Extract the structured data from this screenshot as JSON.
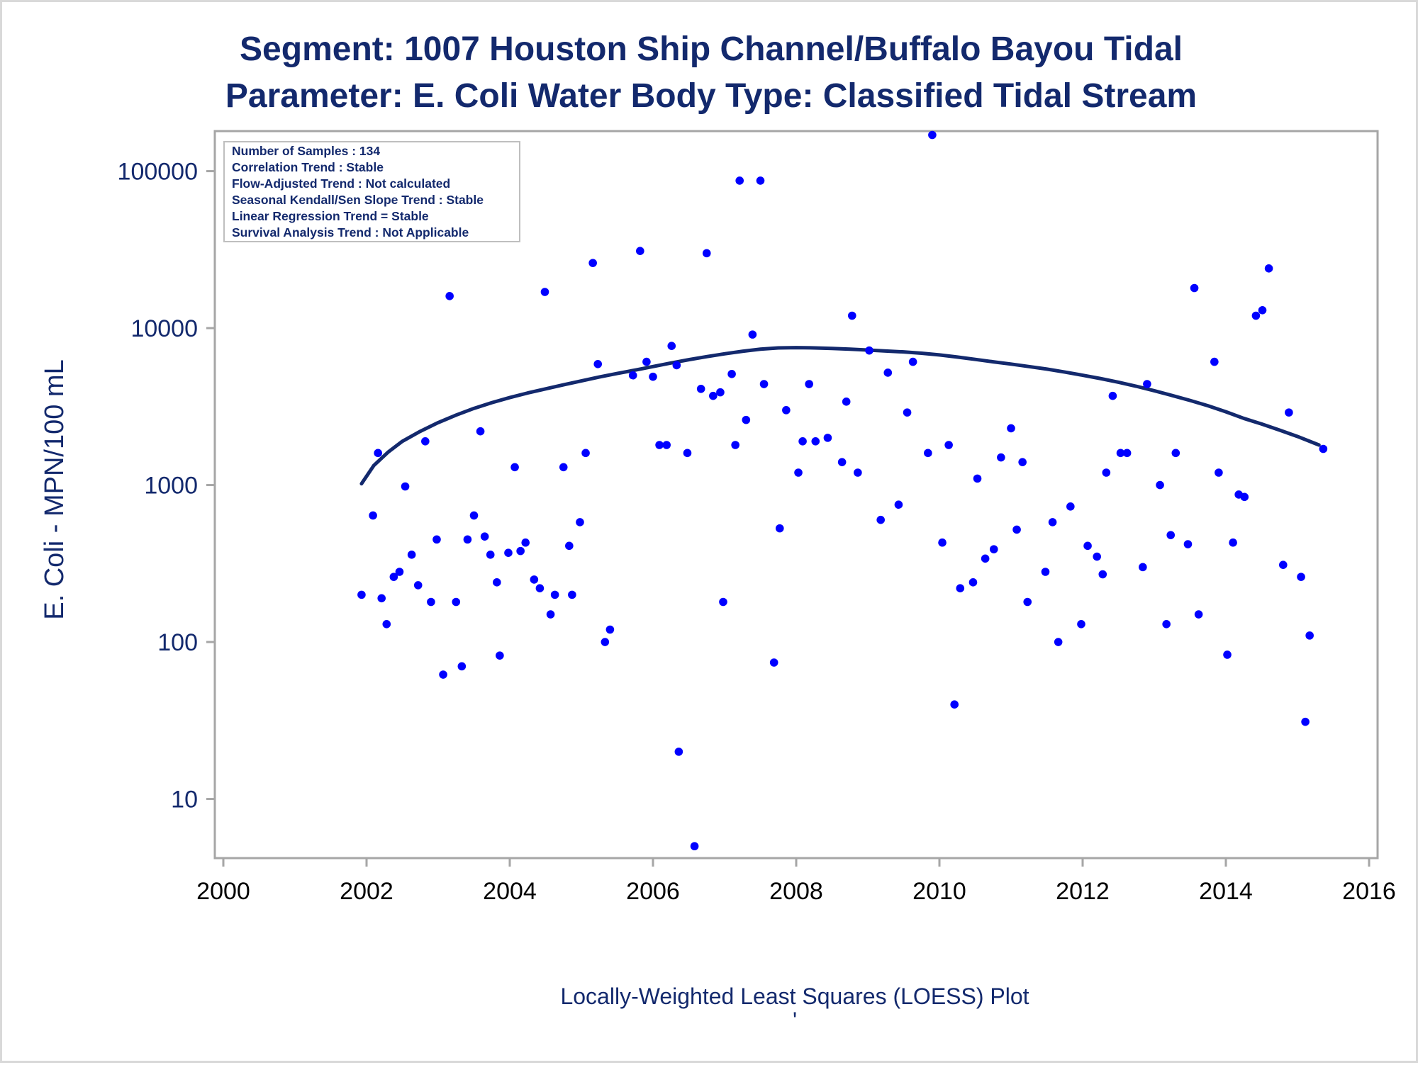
{
  "chart_data": {
    "type": "scatter",
    "title": "Segment: 1007  Houston Ship Channel/Buffalo Bayou Tidal",
    "subtitle": "Parameter: E. Coli   Water Body Type: Classified Tidal Stream",
    "xlabel": "",
    "ylabel": "E. Coli - MPN/100 mL",
    "footer": "Locally-Weighted Least Squares (LOESS) Plot",
    "footer_mark": "'",
    "xlim": [
      2000,
      2016
    ],
    "ylim": [
      4.2,
      180000
    ],
    "yscale": "log",
    "x_ticks": [
      2000,
      2002,
      2004,
      2006,
      2008,
      2010,
      2012,
      2014,
      2016
    ],
    "x_tick_labels": [
      "2000",
      "2002",
      "2004",
      "2006",
      "2008",
      "2010",
      "2012",
      "2014",
      "2016"
    ],
    "y_ticks": [
      10,
      100,
      1000,
      10000,
      100000
    ],
    "y_tick_labels": [
      "10",
      "100",
      "1000",
      "10000",
      "100000"
    ],
    "grid": false,
    "colors": {
      "points": "#0000ff",
      "loess": "#13296d",
      "text": "#13296d",
      "axis": "#a6a6a6"
    },
    "stats_box": {
      "position": "top-left",
      "lines": [
        "Number of Samples : 134",
        "Correlation Trend : Stable",
        "Flow-Adjusted Trend : Not calculated",
        "Seasonal Kendall/Sen Slope Trend : Stable",
        "Linear Regression Trend = Stable",
        "Survival Analysis Trend : Not Applicable"
      ]
    },
    "series": [
      {
        "type": "scatter",
        "points": [
          [
            2001.93,
            200
          ],
          [
            2002.09,
            640
          ],
          [
            2002.16,
            1600
          ],
          [
            2002.21,
            190
          ],
          [
            2002.28,
            130
          ],
          [
            2002.38,
            260
          ],
          [
            2002.46,
            280
          ],
          [
            2002.54,
            980
          ],
          [
            2002.63,
            360
          ],
          [
            2002.72,
            230
          ],
          [
            2002.82,
            1900
          ],
          [
            2002.9,
            180
          ],
          [
            2002.98,
            450
          ],
          [
            2003.07,
            62
          ],
          [
            2003.16,
            16000
          ],
          [
            2003.25,
            180
          ],
          [
            2003.33,
            70
          ],
          [
            2003.41,
            450
          ],
          [
            2003.5,
            640
          ],
          [
            2003.59,
            2200
          ],
          [
            2003.65,
            470
          ],
          [
            2003.73,
            360
          ],
          [
            2003.82,
            240
          ],
          [
            2003.86,
            82
          ],
          [
            2003.98,
            370
          ],
          [
            2004.07,
            1300
          ],
          [
            2004.15,
            380
          ],
          [
            2004.22,
            430
          ],
          [
            2004.34,
            250
          ],
          [
            2004.42,
            220
          ],
          [
            2004.49,
            17000
          ],
          [
            2004.57,
            150
          ],
          [
            2004.63,
            200
          ],
          [
            2004.75,
            1300
          ],
          [
            2004.83,
            410
          ],
          [
            2004.87,
            200
          ],
          [
            2004.98,
            580
          ],
          [
            2005.06,
            1600
          ],
          [
            2005.16,
            26000
          ],
          [
            2005.23,
            5900
          ],
          [
            2005.33,
            100
          ],
          [
            2005.4,
            120
          ],
          [
            2005.72,
            5000
          ],
          [
            2005.82,
            31000
          ],
          [
            2005.91,
            6100
          ],
          [
            2006.0,
            4900
          ],
          [
            2006.09,
            1800
          ],
          [
            2006.19,
            1800
          ],
          [
            2006.26,
            7700
          ],
          [
            2006.33,
            5800
          ],
          [
            2006.36,
            20
          ],
          [
            2006.48,
            1600
          ],
          [
            2006.58,
            5
          ],
          [
            2006.67,
            4100
          ],
          [
            2006.75,
            30000
          ],
          [
            2006.84,
            3700
          ],
          [
            2006.94,
            3900
          ],
          [
            2006.98,
            180
          ],
          [
            2007.1,
            5100
          ],
          [
            2007.15,
            1800
          ],
          [
            2007.21,
            87000
          ],
          [
            2007.3,
            2600
          ],
          [
            2007.39,
            9100
          ],
          [
            2007.5,
            87000
          ],
          [
            2007.55,
            4400
          ],
          [
            2007.69,
            74
          ],
          [
            2007.77,
            530
          ],
          [
            2007.86,
            3000
          ],
          [
            2008.03,
            1200
          ],
          [
            2008.09,
            1900
          ],
          [
            2008.18,
            4400
          ],
          [
            2008.27,
            1900
          ],
          [
            2008.44,
            2000
          ],
          [
            2008.64,
            1400
          ],
          [
            2008.7,
            3400
          ],
          [
            2008.78,
            12000
          ],
          [
            2008.86,
            1200
          ],
          [
            2009.02,
            7200
          ],
          [
            2009.18,
            600
          ],
          [
            2009.28,
            5200
          ],
          [
            2009.43,
            750
          ],
          [
            2009.55,
            2900
          ],
          [
            2009.63,
            6100
          ],
          [
            2009.84,
            1600
          ],
          [
            2009.9,
            170000
          ],
          [
            2010.04,
            430
          ],
          [
            2010.13,
            1800
          ],
          [
            2010.21,
            40
          ],
          [
            2010.29,
            220
          ],
          [
            2010.47,
            240
          ],
          [
            2010.53,
            1100
          ],
          [
            2010.64,
            340
          ],
          [
            2010.76,
            390
          ],
          [
            2010.86,
            1500
          ],
          [
            2011.0,
            2300
          ],
          [
            2011.08,
            520
          ],
          [
            2011.16,
            1400
          ],
          [
            2011.23,
            180
          ],
          [
            2011.48,
            280
          ],
          [
            2011.58,
            580
          ],
          [
            2011.66,
            100
          ],
          [
            2011.83,
            730
          ],
          [
            2011.98,
            130
          ],
          [
            2012.07,
            410
          ],
          [
            2012.2,
            350
          ],
          [
            2012.28,
            270
          ],
          [
            2012.33,
            1200
          ],
          [
            2012.42,
            3700
          ],
          [
            2012.53,
            1600
          ],
          [
            2012.62,
            1600
          ],
          [
            2012.84,
            300
          ],
          [
            2012.9,
            4400
          ],
          [
            2013.08,
            1000
          ],
          [
            2013.17,
            130
          ],
          [
            2013.23,
            480
          ],
          [
            2013.3,
            1600
          ],
          [
            2013.47,
            420
          ],
          [
            2013.56,
            18000
          ],
          [
            2013.62,
            150
          ],
          [
            2013.84,
            6100
          ],
          [
            2013.9,
            1200
          ],
          [
            2014.02,
            83
          ],
          [
            2014.1,
            430
          ],
          [
            2014.18,
            870
          ],
          [
            2014.26,
            840
          ],
          [
            2014.42,
            12000
          ],
          [
            2014.51,
            13000
          ],
          [
            2014.6,
            24000
          ],
          [
            2014.8,
            310
          ],
          [
            2014.88,
            2900
          ],
          [
            2015.05,
            260
          ],
          [
            2015.11,
            31
          ],
          [
            2015.17,
            110
          ],
          [
            2015.36,
            1700
          ]
        ]
      },
      {
        "type": "line",
        "points": [
          [
            2001.93,
            1020
          ],
          [
            2002.1,
            1330
          ],
          [
            2002.3,
            1620
          ],
          [
            2002.5,
            1900
          ],
          [
            2002.75,
            2200
          ],
          [
            2003.0,
            2500
          ],
          [
            2003.25,
            2790
          ],
          [
            2003.5,
            3080
          ],
          [
            2003.75,
            3350
          ],
          [
            2004.0,
            3610
          ],
          [
            2004.25,
            3860
          ],
          [
            2004.5,
            4100
          ],
          [
            2004.75,
            4350
          ],
          [
            2005.0,
            4610
          ],
          [
            2005.25,
            4880
          ],
          [
            2005.5,
            5140
          ],
          [
            2005.75,
            5400
          ],
          [
            2006.0,
            5690
          ],
          [
            2006.25,
            5990
          ],
          [
            2006.5,
            6290
          ],
          [
            2006.75,
            6580
          ],
          [
            2007.0,
            6860
          ],
          [
            2007.25,
            7120
          ],
          [
            2007.5,
            7340
          ],
          [
            2007.75,
            7480
          ],
          [
            2008.0,
            7510
          ],
          [
            2008.25,
            7480
          ],
          [
            2008.5,
            7420
          ],
          [
            2008.75,
            7340
          ],
          [
            2009.0,
            7250
          ],
          [
            2009.25,
            7150
          ],
          [
            2009.5,
            7050
          ],
          [
            2009.75,
            6920
          ],
          [
            2010.0,
            6750
          ],
          [
            2010.25,
            6540
          ],
          [
            2010.5,
            6320
          ],
          [
            2010.75,
            6100
          ],
          [
            2011.0,
            5900
          ],
          [
            2011.25,
            5690
          ],
          [
            2011.5,
            5480
          ],
          [
            2011.75,
            5250
          ],
          [
            2012.0,
            5010
          ],
          [
            2012.25,
            4770
          ],
          [
            2012.5,
            4520
          ],
          [
            2012.75,
            4260
          ],
          [
            2013.0,
            3990
          ],
          [
            2013.25,
            3720
          ],
          [
            2013.5,
            3460
          ],
          [
            2013.75,
            3200
          ],
          [
            2014.0,
            2930
          ],
          [
            2014.25,
            2660
          ],
          [
            2014.5,
            2450
          ],
          [
            2014.75,
            2240
          ],
          [
            2015.0,
            2040
          ],
          [
            2015.3,
            1800
          ]
        ]
      }
    ]
  }
}
